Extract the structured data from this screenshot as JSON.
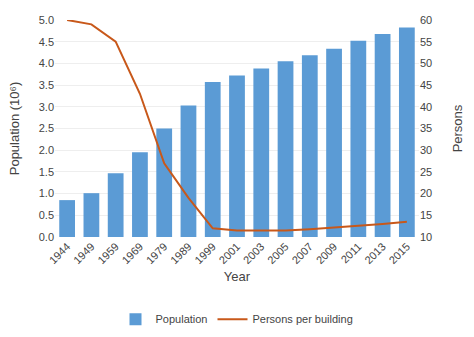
{
  "chart_data": {
    "type": "bar",
    "categories": [
      "1944",
      "1949",
      "1959",
      "1969",
      "1979",
      "1989",
      "1999",
      "2001",
      "2003",
      "2005",
      "2007",
      "2009",
      "2011",
      "2013",
      "2015"
    ],
    "series": [
      {
        "name": "Population",
        "type": "bar",
        "color": "#5b9bd5",
        "values": [
          0.85,
          1.01,
          1.47,
          1.95,
          2.5,
          3.03,
          3.57,
          3.72,
          3.88,
          4.05,
          4.19,
          4.34,
          4.52,
          4.68,
          4.83
        ]
      },
      {
        "name": "Persons per building",
        "type": "line",
        "color": "#c8581a",
        "axis": "y2",
        "values": [
          60,
          59,
          55,
          43,
          27,
          19,
          12,
          11.5,
          11.5,
          11.5,
          11.8,
          12.2,
          12.5,
          13.0,
          13.5
        ]
      }
    ],
    "xlabel": "Year",
    "ylabel": "Population (10⁶)",
    "y2label": "Persons",
    "ylim": [
      0.0,
      5.0
    ],
    "yticks": [
      {
        "value": 0,
        "label": "0.0"
      },
      0.5,
      {
        "value": 1,
        "label": "1.0"
      },
      1.5,
      {
        "value": 2,
        "label": "2.0"
      },
      2.5,
      {
        "value": 3,
        "label": "3.0"
      },
      3.5,
      {
        "value": 4,
        "label": "4.0"
      },
      4.5,
      {
        "value": 5,
        "label": "5.0"
      }
    ],
    "y2lim": [
      10,
      60
    ],
    "y2ticks": [
      10,
      15,
      20,
      25,
      30,
      35,
      40,
      45,
      50,
      55,
      60
    ],
    "grid": true,
    "legend": "bottom"
  }
}
